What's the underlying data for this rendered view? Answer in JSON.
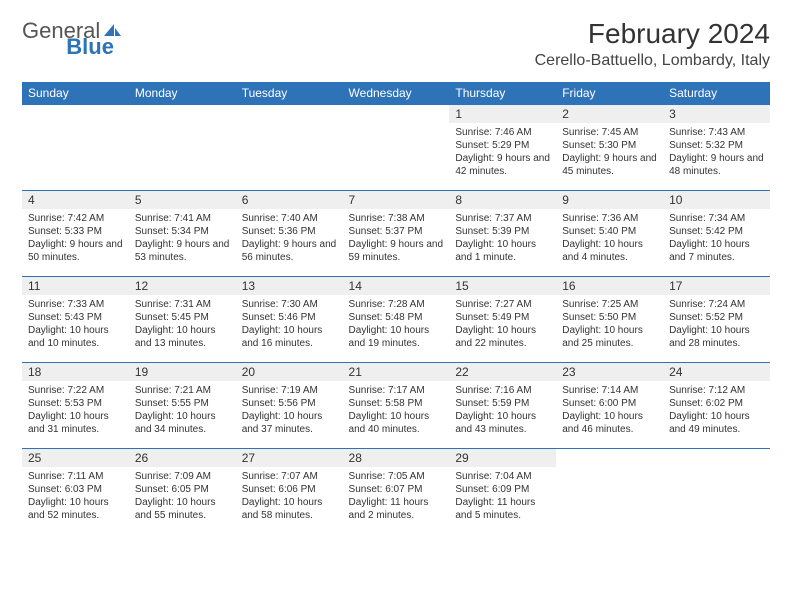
{
  "logo": {
    "part1": "General",
    "part2": "Blue"
  },
  "title": "February 2024",
  "location": "Cerello-Battuello, Lombardy, Italy",
  "colors": {
    "header_bg": "#2e72b8",
    "header_fg": "#ffffff",
    "daynum_bg": "#efefef",
    "rule": "#2e72b8"
  },
  "fonts": {
    "title_size": 28,
    "location_size": 16,
    "dayhdr_size": 12,
    "body_size": 10
  },
  "day_headers": [
    "Sunday",
    "Monday",
    "Tuesday",
    "Wednesday",
    "Thursday",
    "Friday",
    "Saturday"
  ],
  "weeks": [
    [
      null,
      null,
      null,
      null,
      {
        "n": "1",
        "sr": "Sunrise: 7:46 AM",
        "ss": "Sunset: 5:29 PM",
        "dl": "Daylight: 9 hours and 42 minutes."
      },
      {
        "n": "2",
        "sr": "Sunrise: 7:45 AM",
        "ss": "Sunset: 5:30 PM",
        "dl": "Daylight: 9 hours and 45 minutes."
      },
      {
        "n": "3",
        "sr": "Sunrise: 7:43 AM",
        "ss": "Sunset: 5:32 PM",
        "dl": "Daylight: 9 hours and 48 minutes."
      }
    ],
    [
      {
        "n": "4",
        "sr": "Sunrise: 7:42 AM",
        "ss": "Sunset: 5:33 PM",
        "dl": "Daylight: 9 hours and 50 minutes."
      },
      {
        "n": "5",
        "sr": "Sunrise: 7:41 AM",
        "ss": "Sunset: 5:34 PM",
        "dl": "Daylight: 9 hours and 53 minutes."
      },
      {
        "n": "6",
        "sr": "Sunrise: 7:40 AM",
        "ss": "Sunset: 5:36 PM",
        "dl": "Daylight: 9 hours and 56 minutes."
      },
      {
        "n": "7",
        "sr": "Sunrise: 7:38 AM",
        "ss": "Sunset: 5:37 PM",
        "dl": "Daylight: 9 hours and 59 minutes."
      },
      {
        "n": "8",
        "sr": "Sunrise: 7:37 AM",
        "ss": "Sunset: 5:39 PM",
        "dl": "Daylight: 10 hours and 1 minute."
      },
      {
        "n": "9",
        "sr": "Sunrise: 7:36 AM",
        "ss": "Sunset: 5:40 PM",
        "dl": "Daylight: 10 hours and 4 minutes."
      },
      {
        "n": "10",
        "sr": "Sunrise: 7:34 AM",
        "ss": "Sunset: 5:42 PM",
        "dl": "Daylight: 10 hours and 7 minutes."
      }
    ],
    [
      {
        "n": "11",
        "sr": "Sunrise: 7:33 AM",
        "ss": "Sunset: 5:43 PM",
        "dl": "Daylight: 10 hours and 10 minutes."
      },
      {
        "n": "12",
        "sr": "Sunrise: 7:31 AM",
        "ss": "Sunset: 5:45 PM",
        "dl": "Daylight: 10 hours and 13 minutes."
      },
      {
        "n": "13",
        "sr": "Sunrise: 7:30 AM",
        "ss": "Sunset: 5:46 PM",
        "dl": "Daylight: 10 hours and 16 minutes."
      },
      {
        "n": "14",
        "sr": "Sunrise: 7:28 AM",
        "ss": "Sunset: 5:48 PM",
        "dl": "Daylight: 10 hours and 19 minutes."
      },
      {
        "n": "15",
        "sr": "Sunrise: 7:27 AM",
        "ss": "Sunset: 5:49 PM",
        "dl": "Daylight: 10 hours and 22 minutes."
      },
      {
        "n": "16",
        "sr": "Sunrise: 7:25 AM",
        "ss": "Sunset: 5:50 PM",
        "dl": "Daylight: 10 hours and 25 minutes."
      },
      {
        "n": "17",
        "sr": "Sunrise: 7:24 AM",
        "ss": "Sunset: 5:52 PM",
        "dl": "Daylight: 10 hours and 28 minutes."
      }
    ],
    [
      {
        "n": "18",
        "sr": "Sunrise: 7:22 AM",
        "ss": "Sunset: 5:53 PM",
        "dl": "Daylight: 10 hours and 31 minutes."
      },
      {
        "n": "19",
        "sr": "Sunrise: 7:21 AM",
        "ss": "Sunset: 5:55 PM",
        "dl": "Daylight: 10 hours and 34 minutes."
      },
      {
        "n": "20",
        "sr": "Sunrise: 7:19 AM",
        "ss": "Sunset: 5:56 PM",
        "dl": "Daylight: 10 hours and 37 minutes."
      },
      {
        "n": "21",
        "sr": "Sunrise: 7:17 AM",
        "ss": "Sunset: 5:58 PM",
        "dl": "Daylight: 10 hours and 40 minutes."
      },
      {
        "n": "22",
        "sr": "Sunrise: 7:16 AM",
        "ss": "Sunset: 5:59 PM",
        "dl": "Daylight: 10 hours and 43 minutes."
      },
      {
        "n": "23",
        "sr": "Sunrise: 7:14 AM",
        "ss": "Sunset: 6:00 PM",
        "dl": "Daylight: 10 hours and 46 minutes."
      },
      {
        "n": "24",
        "sr": "Sunrise: 7:12 AM",
        "ss": "Sunset: 6:02 PM",
        "dl": "Daylight: 10 hours and 49 minutes."
      }
    ],
    [
      {
        "n": "25",
        "sr": "Sunrise: 7:11 AM",
        "ss": "Sunset: 6:03 PM",
        "dl": "Daylight: 10 hours and 52 minutes."
      },
      {
        "n": "26",
        "sr": "Sunrise: 7:09 AM",
        "ss": "Sunset: 6:05 PM",
        "dl": "Daylight: 10 hours and 55 minutes."
      },
      {
        "n": "27",
        "sr": "Sunrise: 7:07 AM",
        "ss": "Sunset: 6:06 PM",
        "dl": "Daylight: 10 hours and 58 minutes."
      },
      {
        "n": "28",
        "sr": "Sunrise: 7:05 AM",
        "ss": "Sunset: 6:07 PM",
        "dl": "Daylight: 11 hours and 2 minutes."
      },
      {
        "n": "29",
        "sr": "Sunrise: 7:04 AM",
        "ss": "Sunset: 6:09 PM",
        "dl": "Daylight: 11 hours and 5 minutes."
      },
      null,
      null
    ]
  ]
}
